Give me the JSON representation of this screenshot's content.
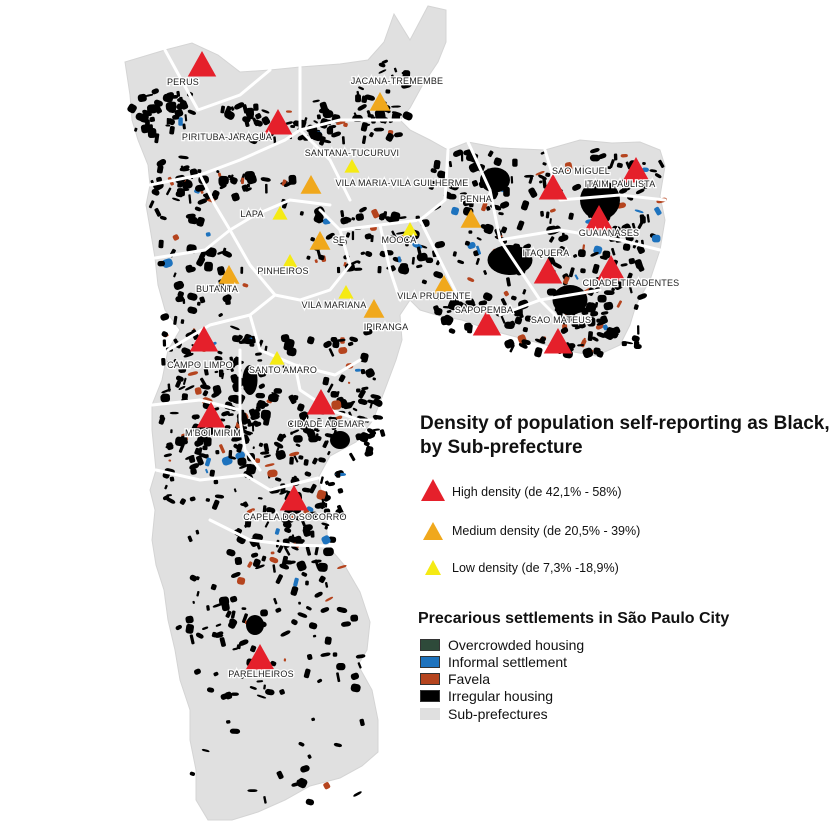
{
  "map": {
    "colors": {
      "subpref": "#e0e0e0",
      "border": "#ffffff",
      "irregular": "#000000",
      "favela": "#b5441e",
      "informal": "#1e73be",
      "overcrowded": "#2e4a3a",
      "high": "#e5202b",
      "medium": "#f0a81c",
      "low": "#f5ea14"
    },
    "subprefectures": [
      {
        "label": "PERUS",
        "density": "high"
      },
      {
        "label": "PIRITUBA-JARAGUA",
        "density": "high"
      },
      {
        "label": "JACANA-TREMEMBE",
        "density": "medium"
      },
      {
        "label": "SANTANA-TUCURUVI",
        "density": "low"
      },
      {
        "label": "VILA MARIA-VILA GUILHERME",
        "density": "medium"
      },
      {
        "label": "LAPA",
        "density": "low"
      },
      {
        "label": "SE",
        "density": "medium"
      },
      {
        "label": "MOOCA",
        "density": "low"
      },
      {
        "label": "PENHA",
        "density": "medium"
      },
      {
        "label": "SAO MIGUEL",
        "density": "high"
      },
      {
        "label": "ITAIM PAULISTA",
        "density": "high"
      },
      {
        "label": "GUAIANASES",
        "density": "high"
      },
      {
        "label": "ITAQUERA",
        "density": "high"
      },
      {
        "label": "CIDADE TIRADENTES",
        "density": "high"
      },
      {
        "label": "PINHEIROS",
        "density": "low"
      },
      {
        "label": "BUTANTA",
        "density": "medium"
      },
      {
        "label": "VILA MARIANA",
        "density": "low"
      },
      {
        "label": "VILA PRUDENTE",
        "density": "medium"
      },
      {
        "label": "SAPOPEMBA",
        "density": "high"
      },
      {
        "label": "SAO MATEUS",
        "density": "high"
      },
      {
        "label": "IPIRANGA",
        "density": "medium"
      },
      {
        "label": "CAMPO LIMPO",
        "density": "high"
      },
      {
        "label": "SANTO AMARO",
        "density": "low"
      },
      {
        "label": "CIDADE ADEMAR",
        "density": "high"
      },
      {
        "label": "M'BOI MIRIM",
        "density": "high"
      },
      {
        "label": "CAPELA DO SOCORRO",
        "density": "high"
      },
      {
        "label": "PARELHEIROS",
        "density": "high"
      }
    ]
  },
  "legend": {
    "title": "Density of population self-reporting as Black, by Sub-prefecture",
    "density": [
      {
        "label": "High density (de 42,1% - 58%)",
        "color": "#e5202b"
      },
      {
        "label": "Medium density (de 20,5% - 39%)",
        "color": "#f0a81c"
      },
      {
        "label": "Low density (de 7,3% -18,9%)",
        "color": "#f5ea14"
      }
    ],
    "settlements_title": "Precarious settlements in São Paulo City",
    "settlements": [
      {
        "label": "Overcrowded housing",
        "color": "#2e4a3a"
      },
      {
        "label": "Informal settlement",
        "color": "#1e73be"
      },
      {
        "label": "Favela",
        "color": "#b5441e"
      },
      {
        "label": "Irregular housing",
        "color": "#000000"
      },
      {
        "label": "Sub-prefectures",
        "color": "#e0e0e0"
      }
    ]
  }
}
